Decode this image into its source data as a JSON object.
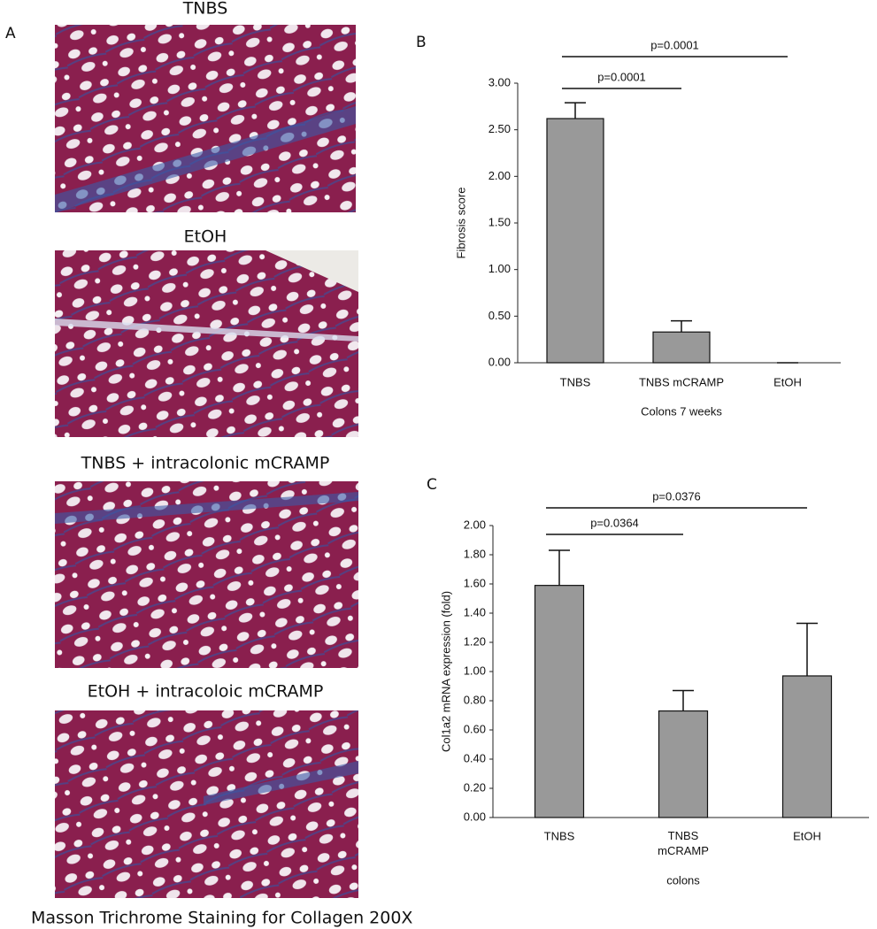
{
  "panel_a": {
    "label": "A",
    "images": [
      {
        "title": "TNBS"
      },
      {
        "title": "EtOH"
      },
      {
        "title": "TNBS + intracolonic mCRAMP"
      },
      {
        "title": "EtOH + intracoloic mCRAMP"
      }
    ],
    "caption": "Masson Trichrome Staining for Collagen 200X"
  },
  "chart_data": [
    {
      "type": "bar",
      "panel": "B",
      "categories": [
        "TNBS",
        "TNBS mCRAMP",
        "EtOH"
      ],
      "values": [
        2.62,
        0.33,
        0
      ],
      "errors": [
        0.17,
        0.12,
        0
      ],
      "color": "#999999",
      "y_label": "Fibrosis score",
      "x_label": "Colons 7 weeks",
      "ylim": [
        0,
        3
      ],
      "yticks": [
        {
          "value": 0,
          "label": "0.00"
        },
        {
          "value": 0.5,
          "label": "0.50"
        },
        {
          "value": 1,
          "label": "1.00"
        },
        {
          "value": 1.5,
          "label": "1.50"
        },
        {
          "value": 2,
          "label": "2.00"
        },
        {
          "value": 2.5,
          "label": "2.50"
        },
        {
          "value": 3,
          "label": "3.00"
        }
      ],
      "annotations": [
        {
          "label": "p=0.0001",
          "from": "TNBS",
          "to": "TNBS mCRAMP"
        },
        {
          "label": "p=0.0001",
          "from": "TNBS",
          "to": "EtOH"
        }
      ]
    },
    {
      "type": "bar",
      "panel": "C",
      "categories": [
        "TNBS",
        "TNBS mCRAMP",
        "EtOH"
      ],
      "values": [
        1.59,
        0.73,
        0.97
      ],
      "errors": [
        0.24,
        0.14,
        0.36
      ],
      "color": "#999999",
      "y_label": "Col1a2 mRNA expression (fold)",
      "x_label": "colons",
      "ylim": [
        0,
        2
      ],
      "yticks": [
        {
          "value": 0,
          "label": "0.00"
        },
        {
          "value": 0.2,
          "label": "0.20"
        },
        {
          "value": 0.4,
          "label": "0.40"
        },
        {
          "value": 0.6,
          "label": "0.60"
        },
        {
          "value": 0.8,
          "label": "0.80"
        },
        {
          "value": 1,
          "label": "1.00"
        },
        {
          "value": 1.2,
          "label": "1.20"
        },
        {
          "value": 1.4,
          "label": "1.40"
        },
        {
          "value": 1.6,
          "label": "1.60"
        },
        {
          "value": 1.8,
          "label": "1.80"
        },
        {
          "value": 2,
          "label": "2.00"
        }
      ],
      "annotations": [
        {
          "label": "p=0.0364",
          "from": "TNBS",
          "to": "TNBS mCRAMP"
        },
        {
          "label": "p=0.0376",
          "from": "TNBS",
          "to": "EtOH"
        }
      ]
    }
  ]
}
